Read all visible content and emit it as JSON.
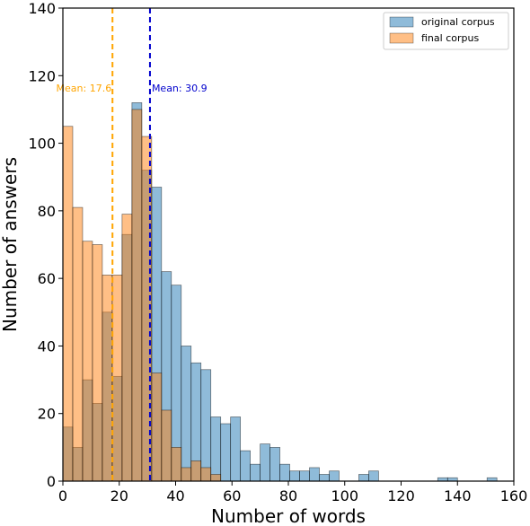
{
  "chart_data": {
    "type": "bar",
    "subtype": "overlapping-histogram",
    "xlabel": "Number of words",
    "ylabel": "Number of answers",
    "xlim": [
      0,
      160
    ],
    "ylim": [
      0,
      140
    ],
    "xticks": [
      0,
      20,
      40,
      60,
      80,
      100,
      120,
      140,
      160
    ],
    "yticks": [
      0,
      20,
      40,
      60,
      80,
      100,
      120,
      140
    ],
    "grid": false,
    "legend_position": "top-right",
    "bin_width": 3.5,
    "series": [
      {
        "name": "original corpus",
        "color": "#1f77b4",
        "bin_starts": [
          0,
          3.5,
          7,
          10.5,
          14,
          17.5,
          21,
          24.5,
          28,
          31.5,
          35,
          38.5,
          42,
          45.5,
          49,
          52.5,
          56,
          59.5,
          63,
          66.5,
          70,
          73.5,
          77,
          80.5,
          84,
          87.5,
          91,
          94.5,
          98,
          101.5,
          105,
          108.5,
          112,
          115.5,
          119,
          122.5,
          126,
          129.5,
          133,
          136.5,
          140,
          143.5,
          147,
          150.5
        ],
        "values": [
          16,
          10,
          30,
          23,
          50,
          31,
          73,
          112,
          92,
          87,
          62,
          58,
          40,
          35,
          33,
          19,
          17,
          19,
          9,
          5,
          11,
          10,
          5,
          3,
          3,
          4,
          2,
          3,
          0,
          0,
          2,
          3,
          0,
          0,
          0,
          0,
          0,
          0,
          1,
          1,
          0,
          0,
          0,
          1
        ]
      },
      {
        "name": "final corpus",
        "color": "#ff7f0e",
        "bin_starts": [
          0,
          3.5,
          7,
          10.5,
          14,
          17.5,
          21,
          24.5,
          28,
          31.5,
          35,
          38.5,
          42,
          45.5,
          49,
          52.5,
          56,
          59.5,
          63,
          66.5,
          70,
          73.5,
          77,
          80.5,
          84,
          87.5,
          91,
          94.5,
          98,
          101.5,
          105,
          108.5,
          112,
          115.5,
          119,
          122.5,
          126,
          129.5,
          133,
          136.5,
          140,
          143.5,
          147,
          150.5
        ],
        "values": [
          105,
          81,
          71,
          70,
          61,
          61,
          79,
          110,
          102,
          32,
          21,
          10,
          4,
          6,
          4,
          2,
          0,
          0,
          0,
          0,
          0,
          0,
          0,
          0,
          0,
          0,
          0,
          0,
          0,
          0,
          0,
          0,
          0,
          0,
          0,
          0,
          0,
          0,
          0,
          0,
          0,
          0,
          0,
          0
        ]
      }
    ],
    "means": [
      {
        "label": "Mean: 17.6",
        "value": 17.6,
        "color": "#ffa500"
      },
      {
        "label": "Mean: 30.9",
        "value": 30.9,
        "color": "#0000cd"
      }
    ]
  }
}
